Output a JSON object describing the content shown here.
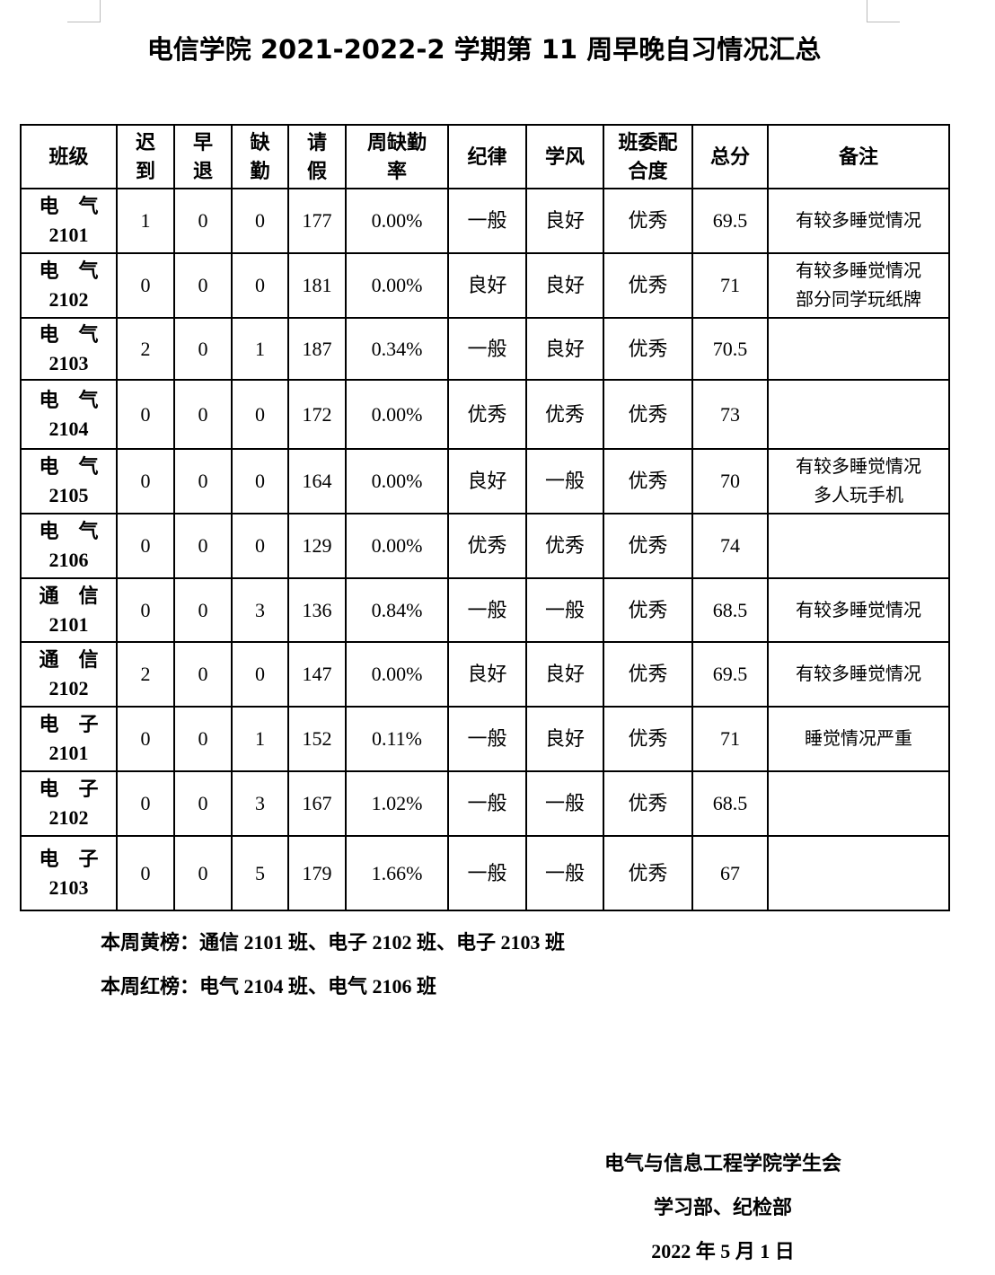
{
  "title": "电信学院 2021-2022-2 学期第 11 周早晚自习情况汇总",
  "table": {
    "headers": [
      [
        "班级"
      ],
      [
        "迟",
        "到"
      ],
      [
        "早",
        "退"
      ],
      [
        "缺",
        "勤"
      ],
      [
        "请",
        "假"
      ],
      [
        "周缺勤",
        "率"
      ],
      [
        "纪律"
      ],
      [
        "学风"
      ],
      [
        "班委配",
        "合度"
      ],
      [
        "总分"
      ],
      [
        "备注"
      ]
    ],
    "rows": [
      {
        "name": "电气",
        "num": "2101",
        "late": "1",
        "early": "0",
        "absent": "0",
        "leave": "177",
        "rate": "0.00%",
        "discipline": "一般",
        "study": "良好",
        "cooperation": "优秀",
        "score": "69.5",
        "notes": [
          "有较多睡觉情况"
        ]
      },
      {
        "name": "电气",
        "num": "2102",
        "late": "0",
        "early": "0",
        "absent": "0",
        "leave": "181",
        "rate": "0.00%",
        "discipline": "良好",
        "study": "良好",
        "cooperation": "优秀",
        "score": "71",
        "notes": [
          "有较多睡觉情况",
          "部分同学玩纸牌"
        ]
      },
      {
        "name": "电气",
        "num": "2103",
        "late": "2",
        "early": "0",
        "absent": "1",
        "leave": "187",
        "rate": "0.34%",
        "discipline": "一般",
        "study": "良好",
        "cooperation": "优秀",
        "score": "70.5",
        "notes": []
      },
      {
        "name": "电气",
        "num": "2104",
        "late": "0",
        "early": "0",
        "absent": "0",
        "leave": "172",
        "rate": "0.00%",
        "discipline": "优秀",
        "study": "优秀",
        "cooperation": "优秀",
        "score": "73",
        "notes": []
      },
      {
        "name": "电气",
        "num": "2105",
        "late": "0",
        "early": "0",
        "absent": "0",
        "leave": "164",
        "rate": "0.00%",
        "discipline": "良好",
        "study": "一般",
        "cooperation": "优秀",
        "score": "70",
        "notes": [
          "有较多睡觉情况",
          "多人玩手机"
        ]
      },
      {
        "name": "电气",
        "num": "2106",
        "late": "0",
        "early": "0",
        "absent": "0",
        "leave": "129",
        "rate": "0.00%",
        "discipline": "优秀",
        "study": "优秀",
        "cooperation": "优秀",
        "score": "74",
        "notes": []
      },
      {
        "name": "通信",
        "num": "2101",
        "late": "0",
        "early": "0",
        "absent": "3",
        "leave": "136",
        "rate": "0.84%",
        "discipline": "一般",
        "study": "一般",
        "cooperation": "优秀",
        "score": "68.5",
        "notes": [
          "有较多睡觉情况"
        ]
      },
      {
        "name": "通信",
        "num": "2102",
        "late": "2",
        "early": "0",
        "absent": "0",
        "leave": "147",
        "rate": "0.00%",
        "discipline": "良好",
        "study": "良好",
        "cooperation": "优秀",
        "score": "69.5",
        "notes": [
          "有较多睡觉情况"
        ]
      },
      {
        "name": "电子",
        "num": "2101",
        "late": "0",
        "early": "0",
        "absent": "1",
        "leave": "152",
        "rate": "0.11%",
        "discipline": "一般",
        "study": "良好",
        "cooperation": "优秀",
        "score": "71",
        "notes": [
          "睡觉情况严重"
        ]
      },
      {
        "name": "电子",
        "num": "2102",
        "late": "0",
        "early": "0",
        "absent": "3",
        "leave": "167",
        "rate": "1.02%",
        "discipline": "一般",
        "study": "一般",
        "cooperation": "优秀",
        "score": "68.5",
        "notes": []
      },
      {
        "name": "电子",
        "num": "2103",
        "late": "0",
        "early": "0",
        "absent": "5",
        "leave": "179",
        "rate": "1.66%",
        "discipline": "一般",
        "study": "一般",
        "cooperation": "优秀",
        "score": "67",
        "notes": []
      }
    ]
  },
  "footer": {
    "yellow_list": "本周黄榜：通信 2101 班、电子 2102 班、电子 2103 班",
    "red_list": "本周红榜：电气 2104 班、电气 2106 班"
  },
  "signature": {
    "org": "电气与信息工程学院学生会",
    "dept": "学习部、纪检部",
    "date": "2022 年 5 月 1 日"
  }
}
